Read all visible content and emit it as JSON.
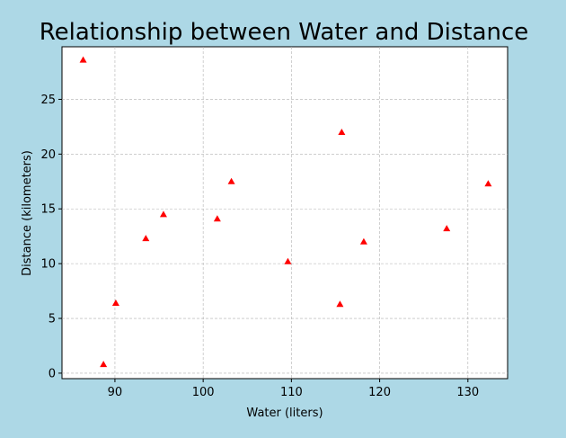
{
  "chart_data": {
    "type": "scatter",
    "title": "Relationship between Water and Distance",
    "xlabel": "Water (liters)",
    "ylabel": "Distance (kilometers)",
    "xlim": [
      84.0,
      134.5
    ],
    "ylim": [
      -0.5,
      29.8
    ],
    "xticks": [
      90,
      100,
      110,
      120,
      130
    ],
    "yticks": [
      0,
      5,
      10,
      15,
      20,
      25
    ],
    "grid": true,
    "marker": "triangle",
    "color": "#ff0000",
    "series": [
      {
        "points": [
          {
            "x": 86.4,
            "y": 28.6
          },
          {
            "x": 88.7,
            "y": 0.8
          },
          {
            "x": 90.1,
            "y": 6.4
          },
          {
            "x": 93.5,
            "y": 12.3
          },
          {
            "x": 95.5,
            "y": 14.5
          },
          {
            "x": 101.6,
            "y": 14.1
          },
          {
            "x": 103.2,
            "y": 17.5
          },
          {
            "x": 109.6,
            "y": 10.2
          },
          {
            "x": 115.5,
            "y": 6.3
          },
          {
            "x": 115.7,
            "y": 22.0
          },
          {
            "x": 118.2,
            "y": 12.0
          },
          {
            "x": 127.6,
            "y": 13.2
          },
          {
            "x": 132.3,
            "y": 17.3
          }
        ]
      }
    ]
  }
}
